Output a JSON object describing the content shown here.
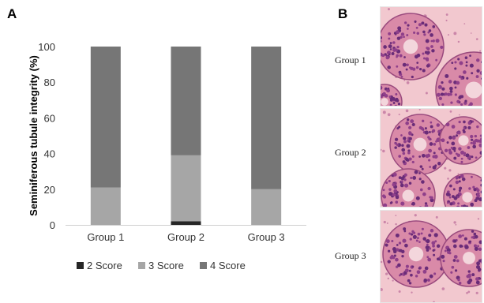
{
  "panels": {
    "a": "A",
    "b": "B"
  },
  "chart_data": {
    "type": "bar",
    "stacked": true,
    "categories": [
      "Group 1",
      "Group 2",
      "Group 3"
    ],
    "series": [
      {
        "name": "2 Score",
        "values": [
          0,
          2,
          0
        ],
        "color": "#262626"
      },
      {
        "name": "3 Score",
        "values": [
          21,
          37,
          20
        ],
        "color": "#a6a6a6"
      },
      {
        "name": "4 Score",
        "values": [
          79,
          61,
          80
        ],
        "color": "#767676"
      }
    ],
    "ylabel": "Seminiferous tubule integrity (%)",
    "ylim": [
      0,
      100
    ],
    "yticks": [
      0,
      20,
      40,
      60,
      80,
      100
    ],
    "grid": false,
    "legend_position": "bottom"
  },
  "micrographs": [
    {
      "label": "Group 1"
    },
    {
      "label": "Group 2"
    },
    {
      "label": "Group 3"
    }
  ]
}
